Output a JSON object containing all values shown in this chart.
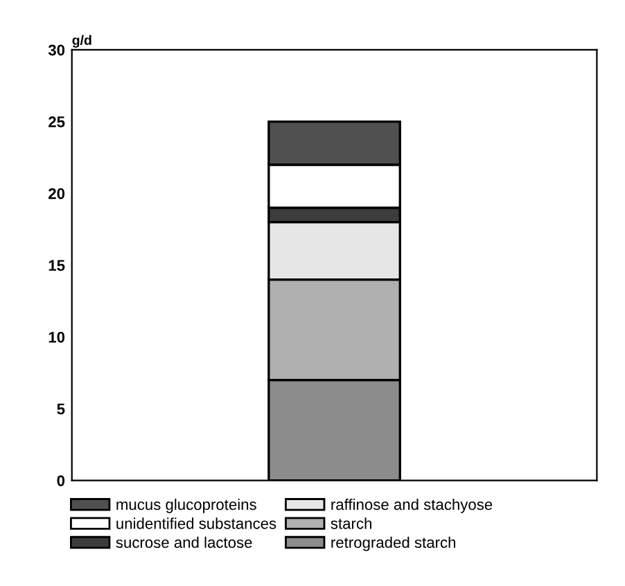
{
  "chart_data": {
    "type": "bar",
    "stacked": true,
    "ylabel": "g/d",
    "categories": [
      null
    ],
    "series": [
      {
        "name": "retrograded starch",
        "color": "#8c8c8c",
        "values": [
          7
        ]
      },
      {
        "name": "starch",
        "color": "#b0b0b0",
        "values": [
          7
        ]
      },
      {
        "name": "raffinose and stachyose",
        "color": "#e6e6e6",
        "values": [
          4
        ]
      },
      {
        "name": "sucrose and lactose",
        "color": "#3c3c3c",
        "values": [
          1
        ]
      },
      {
        "name": "unidentified substances",
        "color": "#ffffff",
        "values": [
          3
        ]
      },
      {
        "name": "mucus glucoproteins",
        "color": "#505050",
        "values": [
          3
        ]
      }
    ],
    "ylim": [
      0,
      30
    ],
    "yticks": [
      0,
      5,
      10,
      15,
      20,
      25,
      30
    ],
    "grid": false,
    "legend": "bottom"
  }
}
